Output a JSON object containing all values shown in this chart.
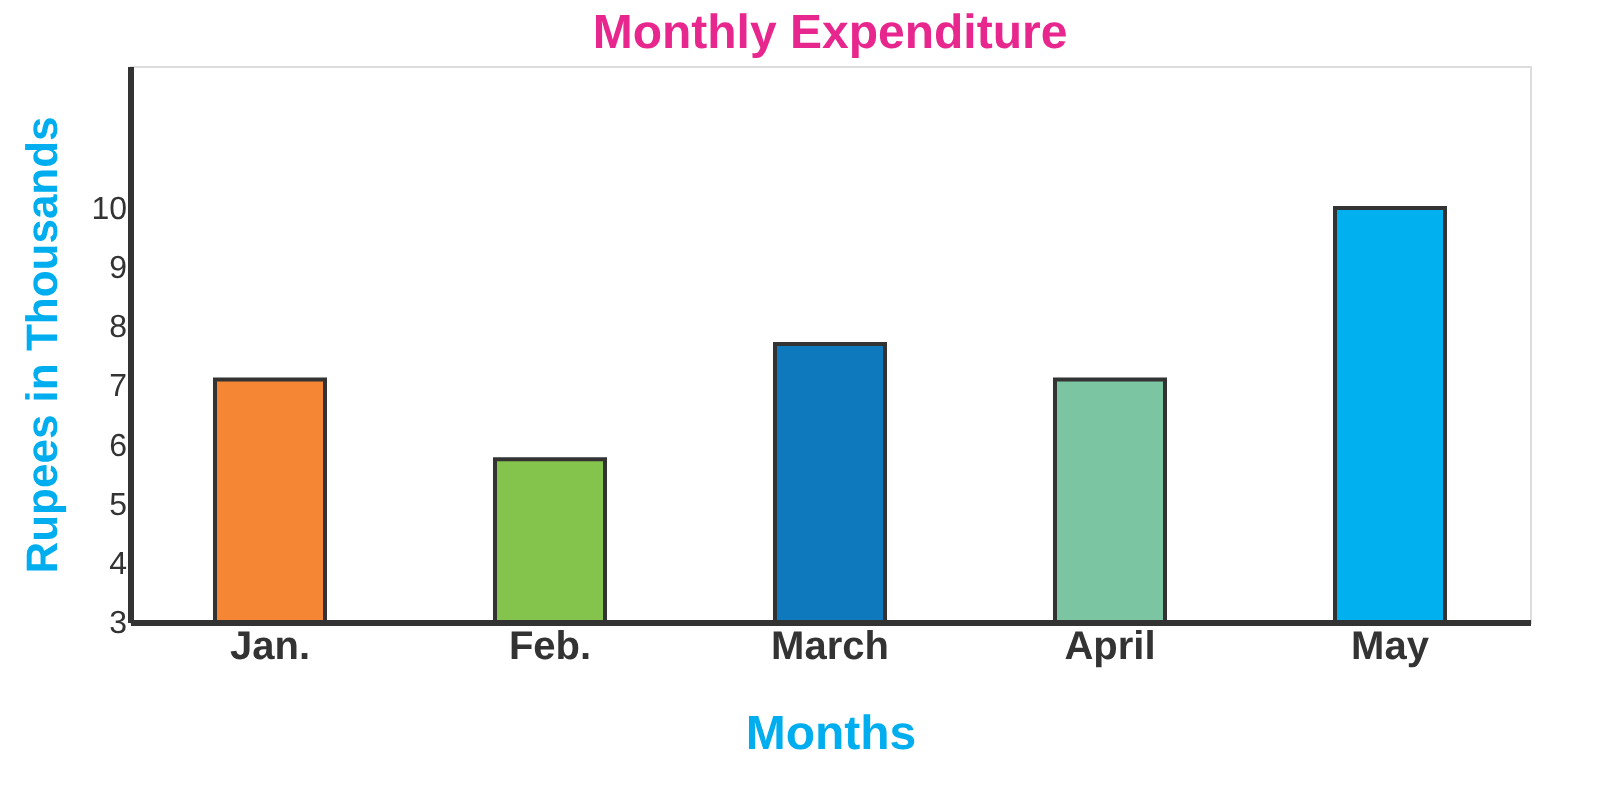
{
  "chart_data": {
    "type": "bar",
    "title": "Monthly Expenditure",
    "xlabel": "Months",
    "ylabel": "Rupees in Thousands",
    "categories": [
      "Jan.",
      "Feb.",
      "March",
      "April",
      "May"
    ],
    "values": [
      7.1,
      5.75,
      7.7,
      7.1,
      10
    ],
    "colors": [
      "#f58634",
      "#84c44c",
      "#0e79bd",
      "#7bc5a2",
      "#00b0ef"
    ],
    "ylim": [
      3,
      12.4
    ],
    "yticks": [
      3,
      4,
      5,
      6,
      7,
      8,
      9,
      10
    ],
    "grid": false
  }
}
